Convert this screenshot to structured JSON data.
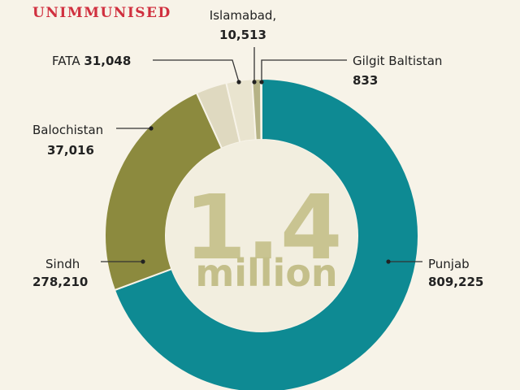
{
  "chart_data": {
    "type": "pie",
    "title": "UNIMMUNISED",
    "center_value": "1.4",
    "center_unit": "million",
    "slices": [
      {
        "name": "Punjab",
        "value": 809225,
        "label_value": "809,225",
        "color": "#0e8a93"
      },
      {
        "name": "Sindh",
        "value": 278210,
        "label_value": "278,210",
        "color": "#8c8a3e"
      },
      {
        "name": "Balochistan",
        "value": 37016,
        "label_value": "37,016",
        "color": "#dfd9c0"
      },
      {
        "name": "FATA",
        "value": 31048,
        "label_value": "31,048",
        "color": "#e9e4cf"
      },
      {
        "name": "Islamabad,",
        "value": 10513,
        "label_value": "10,513",
        "color": "#b6b386"
      },
      {
        "name": "Gilgit Baltistan",
        "value": 833,
        "label_value": "833",
        "color": "#6f6d2e"
      }
    ]
  }
}
